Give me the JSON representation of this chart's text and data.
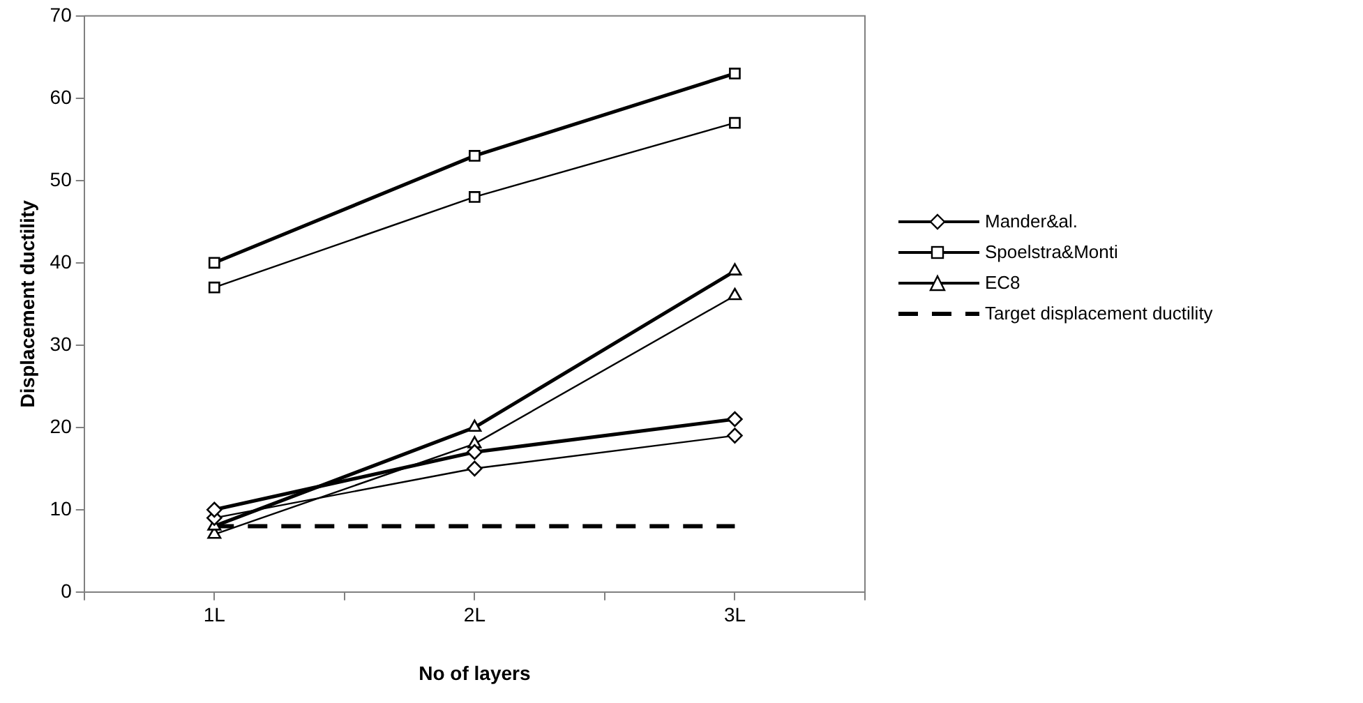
{
  "chart_data": {
    "type": "line",
    "xlabel": "No of layers",
    "ylabel": "Displacement ductility",
    "categories": [
      "1L",
      "2L",
      "3L"
    ],
    "series": [
      {
        "name": "Mander&al.",
        "color": "#000000",
        "marker": "diamond",
        "values": [
          10,
          17,
          21
        ]
      },
      {
        "color": "#000000",
        "marker": "diamond",
        "values": [
          9,
          15,
          19
        ]
      },
      {
        "name": "Spoelstra&Monti",
        "color": "#000000",
        "marker": "square",
        "values": [
          40,
          53,
          63
        ]
      },
      {
        "color": "#000000",
        "marker": "square",
        "values": [
          37,
          48,
          57
        ]
      },
      {
        "name": "EC8",
        "color": "#000000",
        "marker": "triangle",
        "values": [
          8,
          20,
          39
        ]
      },
      {
        "color": "#000000",
        "marker": "triangle",
        "values": [
          7,
          18,
          36
        ]
      },
      {
        "name": "Target displacement ductility",
        "color": "#000000",
        "marker": "none",
        "line_style": "dashed",
        "values": [
          8,
          8,
          8
        ]
      }
    ],
    "ylim": [
      0,
      70
    ],
    "yticks": [
      0,
      10,
      20,
      30,
      40,
      50,
      60,
      70
    ],
    "grid": false,
    "legend": "right"
  }
}
